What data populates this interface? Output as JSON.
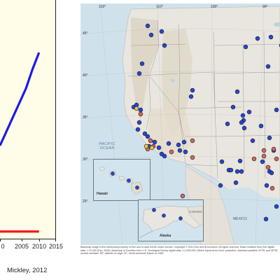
{
  "chart": {
    "x_tick_labels": [
      "0",
      "2005",
      "2010",
      "2015"
    ],
    "credit": "Mickley, 2012"
  },
  "chart_data": {
    "type": "line",
    "xlim": [
      1998,
      2015
    ],
    "ylim": [
      0,
      100
    ],
    "series": [
      {
        "color": "#1a1af0",
        "x": [
          1998,
          2000,
          2002,
          2004,
          2006,
          2008,
          2010
        ],
        "y": [
          39,
          45,
          51,
          57,
          63,
          71,
          78
        ]
      },
      {
        "color": "#ee1b1b",
        "x": [
          1998,
          2000,
          2002,
          2004,
          2006,
          2008,
          2010
        ],
        "y": [
          3,
          3,
          3,
          3,
          3,
          3,
          3
        ]
      }
    ]
  },
  "map": {
    "longitude_labels": [
      "120°",
      "110°",
      "100°",
      "90°"
    ],
    "latitude_labels": [
      "45°",
      "40°",
      "35°",
      "30°",
      "25°"
    ],
    "ocean_label": "PACIFIC OCEAN",
    "hawaii_label": "Hawaii",
    "alaska_label": "Alaska",
    "canada_label": "CANADA",
    "mexico_label": "MEXICO",
    "caption": "Basemap image is the intellectual property of Esri and is used herein under license. Copyright © 2014 Esri and its licensors. All rights reserved. Base modified from Esri digital data, 1:70,000 (Esri, 2009). Basemap of Counties from U.S. Geological Survey digital data, 1:2,000,000. Albers Equal-Area Conic projection, standard parallels 29°30' and 45°30', central meridian -96°, latitude of origin 23°, North American Datum of 1983.",
    "colors": {
      "blue_site": "#2546d6",
      "red_site": "#d26565",
      "yellow_site": "#e8c83c"
    }
  }
}
